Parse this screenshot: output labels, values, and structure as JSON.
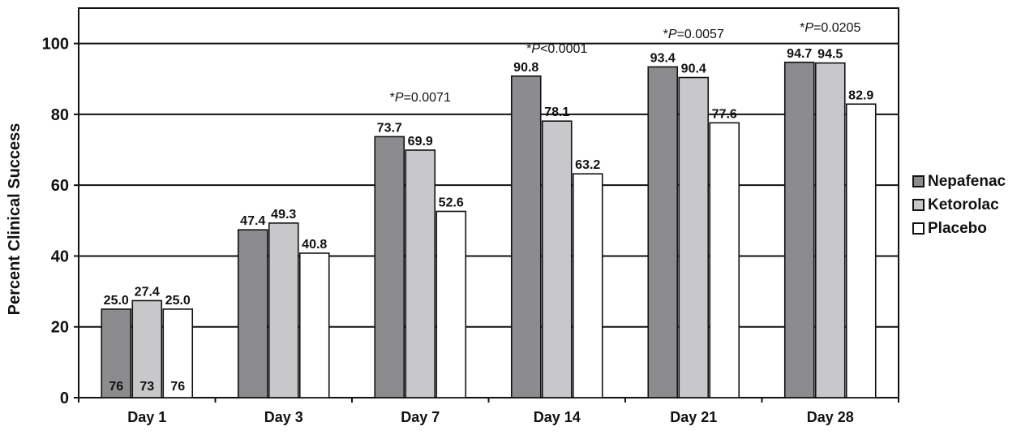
{
  "chart_data": {
    "type": "bar",
    "ylabel": "Percent Clinical Success",
    "ylim": [
      0,
      110
    ],
    "yticks": [
      0,
      20,
      40,
      60,
      80,
      100
    ],
    "grid": true,
    "legend_position": "right",
    "categories": [
      "Day 1",
      "Day 3",
      "Day 7",
      "Day 14",
      "Day 21",
      "Day 28"
    ],
    "series": [
      {
        "name": "Nepafenac",
        "color": "#8c8c8e",
        "values": [
          25.0,
          47.4,
          73.7,
          90.8,
          93.4,
          94.7
        ],
        "labels": [
          "25.0",
          "47.4",
          "73.7",
          "90.8",
          "93.4",
          "94.7"
        ]
      },
      {
        "name": "Ketorolac",
        "color": "#c8c8ca",
        "values": [
          27.4,
          49.3,
          69.9,
          78.1,
          90.4,
          94.5
        ],
        "labels": [
          "27.4",
          "49.3",
          "69.9",
          "78.1",
          "90.4",
          "94.5"
        ]
      },
      {
        "name": "Placebo",
        "color": "#ffffff",
        "values": [
          25.0,
          40.8,
          52.6,
          63.2,
          77.6,
          82.9
        ],
        "labels": [
          "25.0",
          "40.8",
          "52.6",
          "63.2",
          "77.6",
          "82.9"
        ]
      }
    ],
    "sample_sizes": [
      "76",
      "73",
      "76"
    ],
    "annotations": [
      {
        "category": "Day 7",
        "prefix": "*",
        "italic": "P",
        "text": "=0.0071"
      },
      {
        "category": "Day 14",
        "prefix": "*",
        "italic": "P",
        "text": "<0.0001"
      },
      {
        "category": "Day 21",
        "prefix": "*",
        "italic": "P",
        "text": "=0.0057"
      },
      {
        "category": "Day 28",
        "prefix": "*",
        "italic": "P",
        "text": "=0.0205"
      }
    ]
  }
}
